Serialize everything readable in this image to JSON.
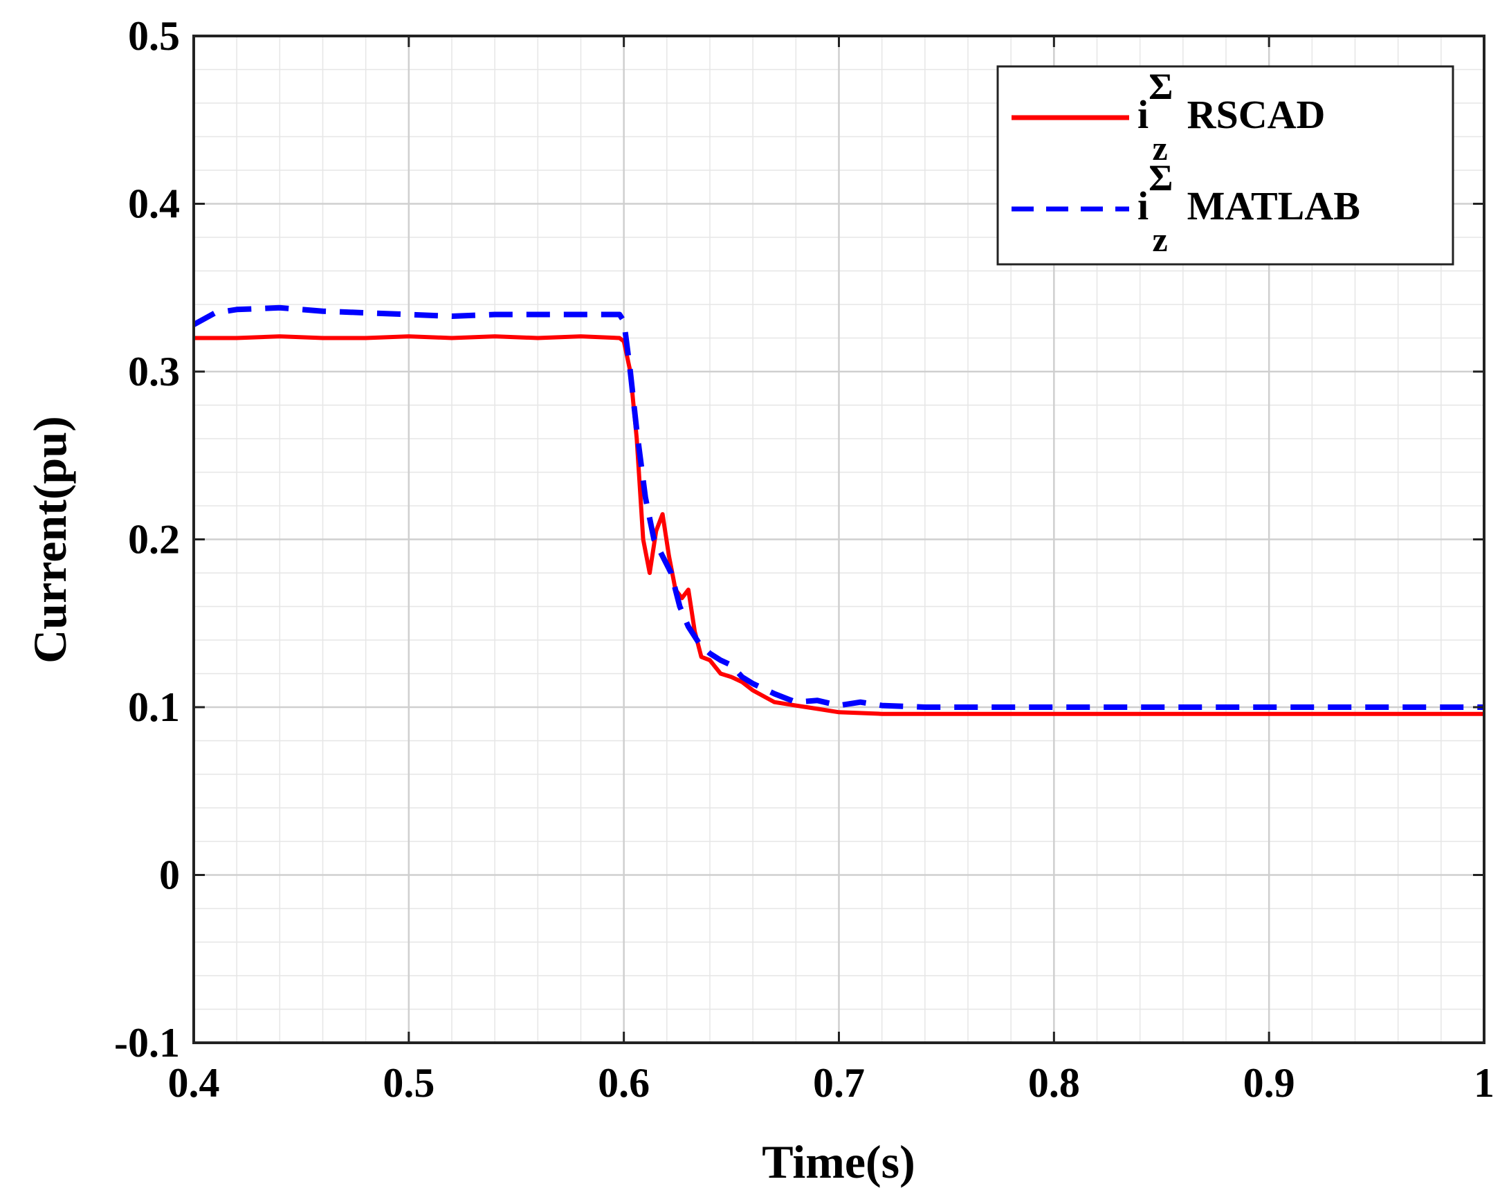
{
  "chart_data": {
    "type": "line",
    "title": "",
    "xlabel": "Time(s)",
    "ylabel": "Current(pu)",
    "xlim": [
      0.4,
      1.0
    ],
    "ylim": [
      -0.1,
      0.5
    ],
    "x_ticks": [
      0.4,
      0.5,
      0.6,
      0.7,
      0.8,
      0.9,
      1.0
    ],
    "x_tick_labels": [
      "0.4",
      "0.5",
      "0.6",
      "0.7",
      "0.8",
      "0.9",
      "1"
    ],
    "y_ticks": [
      -0.1,
      0,
      0.1,
      0.2,
      0.3,
      0.4,
      0.5
    ],
    "y_tick_labels": [
      "-0.1",
      "0",
      "0.1",
      "0.2",
      "0.3",
      "0.4",
      "0.5"
    ],
    "grid": true,
    "minor_grid": true,
    "legend_position": "top-right",
    "series": [
      {
        "name": "i_z^Σ RSCAD",
        "legend_main": "i",
        "legend_sup": "Σ",
        "legend_sub": "z",
        "legend_tail": "RSCAD",
        "color": "#ff0000",
        "style": "solid",
        "x": [
          0.4,
          0.42,
          0.44,
          0.46,
          0.48,
          0.5,
          0.52,
          0.54,
          0.56,
          0.58,
          0.598,
          0.6,
          0.603,
          0.606,
          0.609,
          0.612,
          0.615,
          0.618,
          0.621,
          0.624,
          0.627,
          0.63,
          0.633,
          0.636,
          0.64,
          0.645,
          0.65,
          0.655,
          0.66,
          0.67,
          0.68,
          0.69,
          0.7,
          0.72,
          0.74,
          0.76,
          0.8,
          0.85,
          0.9,
          0.95,
          1.0
        ],
        "y": [
          0.32,
          0.32,
          0.321,
          0.32,
          0.32,
          0.321,
          0.32,
          0.321,
          0.32,
          0.321,
          0.32,
          0.318,
          0.3,
          0.26,
          0.2,
          0.18,
          0.205,
          0.215,
          0.19,
          0.17,
          0.165,
          0.17,
          0.145,
          0.13,
          0.128,
          0.12,
          0.118,
          0.115,
          0.11,
          0.103,
          0.101,
          0.099,
          0.097,
          0.096,
          0.096,
          0.096,
          0.096,
          0.096,
          0.096,
          0.096,
          0.096
        ]
      },
      {
        "name": "i_z^Σ MATLAB",
        "legend_main": "i",
        "legend_sup": "Σ",
        "legend_sub": "z",
        "legend_tail": "MATLAB",
        "color": "#0000ff",
        "style": "dashed",
        "x": [
          0.4,
          0.41,
          0.42,
          0.44,
          0.46,
          0.48,
          0.5,
          0.52,
          0.54,
          0.56,
          0.58,
          0.598,
          0.6,
          0.603,
          0.606,
          0.61,
          0.614,
          0.618,
          0.622,
          0.626,
          0.63,
          0.635,
          0.64,
          0.645,
          0.65,
          0.655,
          0.66,
          0.67,
          0.68,
          0.69,
          0.7,
          0.71,
          0.72,
          0.74,
          0.76,
          0.8,
          0.85,
          0.9,
          0.95,
          1.0
        ],
        "y": [
          0.328,
          0.335,
          0.337,
          0.338,
          0.336,
          0.335,
          0.334,
          0.333,
          0.334,
          0.334,
          0.334,
          0.334,
          0.33,
          0.3,
          0.265,
          0.225,
          0.2,
          0.19,
          0.18,
          0.16,
          0.148,
          0.138,
          0.132,
          0.128,
          0.125,
          0.118,
          0.114,
          0.108,
          0.103,
          0.104,
          0.101,
          0.103,
          0.101,
          0.1,
          0.1,
          0.1,
          0.1,
          0.1,
          0.1,
          0.1
        ]
      }
    ]
  }
}
